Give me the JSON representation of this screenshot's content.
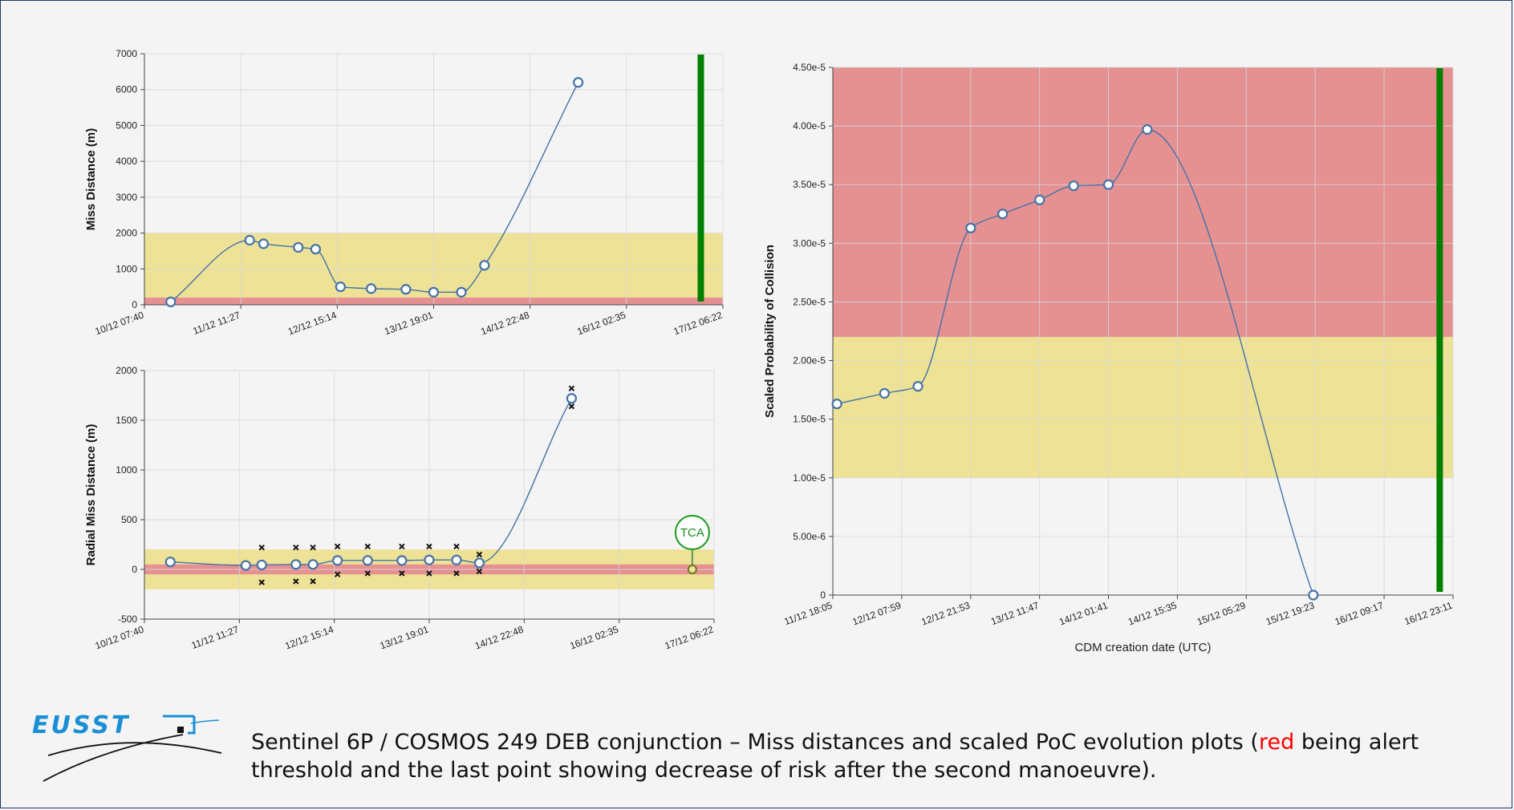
{
  "chart_data": [
    {
      "id": "miss",
      "type": "line",
      "ylabel": "Miss Distance (m)",
      "xlim": [
        "2020-12-10T07:40",
        "2020-12-17T06:22"
      ],
      "x_ticks": [
        "10/12 07:40",
        "11/12 11:27",
        "12/12 15:14",
        "13/12 19:01",
        "14/12 22:48",
        "16/12 02:35",
        "17/12 06:22"
      ],
      "ylim": [
        0,
        7000
      ],
      "y_ticks": [
        "0",
        "1000",
        "2000",
        "3000",
        "4000",
        "5000",
        "6000",
        "7000"
      ],
      "grid": true,
      "bands": [
        {
          "from": 0,
          "to": 2000,
          "color": "#ede296"
        },
        {
          "from": 0,
          "to": 200,
          "color": "#e59192"
        }
      ],
      "vline": {
        "x": "2020-12-17T00:00",
        "color": "#008000"
      },
      "series": [
        {
          "x": [
            "2020-12-10T15:15",
            "2020-12-11T14:00",
            "2020-12-11T18:00",
            "2020-12-12T04:00",
            "2020-12-12T09:00",
            "2020-12-12T16:10",
            "2020-12-13T01:00",
            "2020-12-13T11:00",
            "2020-12-13T19:00",
            "2020-12-14T03:00",
            "2020-12-14T09:40",
            "2020-12-15T12:40"
          ],
          "y": [
            80,
            1800,
            1700,
            1600,
            1550,
            500,
            450,
            430,
            350,
            350,
            1100,
            6200
          ]
        }
      ]
    },
    {
      "id": "radial",
      "type": "line",
      "ylabel": "Radial Miss Distance (m)",
      "xlim": [
        "2020-12-10T07:40",
        "2020-12-17T06:22"
      ],
      "x_ticks": [
        "10/12 07:40",
        "11/12 11:27",
        "12/12 15:14",
        "13/12 19:01",
        "14/12 22:48",
        "16/12 02:35",
        "17/12 06:22"
      ],
      "ylim": [
        -500,
        2000
      ],
      "y_ticks": [
        "-500",
        "0",
        "500",
        "1000",
        "1500",
        "2000"
      ],
      "grid": true,
      "bands": [
        {
          "from": -200,
          "to": 200,
          "color": "#ede296"
        },
        {
          "from": -50,
          "to": 50,
          "color": "#e59192"
        }
      ],
      "series": [
        {
          "x": [
            "2020-12-10T15:15",
            "2020-12-11T13:20",
            "2020-12-11T18:00",
            "2020-12-12T04:00",
            "2020-12-12T09:00",
            "2020-12-12T16:10",
            "2020-12-13T01:00",
            "2020-12-13T11:00",
            "2020-12-13T19:00",
            "2020-12-14T03:00",
            "2020-12-14T09:40",
            "2020-12-15T12:40"
          ],
          "y": [
            75,
            40,
            45,
            50,
            50,
            90,
            90,
            90,
            95,
            95,
            65,
            1720
          ]
        }
      ],
      "error_markers": [
        {
          "x": "2020-12-11T18:00",
          "y": [
            220,
            -130
          ]
        },
        {
          "x": "2020-12-12T04:00",
          "y": [
            220,
            -120
          ]
        },
        {
          "x": "2020-12-12T09:00",
          "y": [
            220,
            -120
          ]
        },
        {
          "x": "2020-12-12T16:10",
          "y": [
            230,
            -50
          ]
        },
        {
          "x": "2020-12-13T01:00",
          "y": [
            230,
            -40
          ]
        },
        {
          "x": "2020-12-13T11:00",
          "y": [
            230,
            -40
          ]
        },
        {
          "x": "2020-12-13T19:00",
          "y": [
            230,
            -40
          ]
        },
        {
          "x": "2020-12-14T03:00",
          "y": [
            230,
            -40
          ]
        },
        {
          "x": "2020-12-14T09:40",
          "y": [
            150,
            -20
          ]
        },
        {
          "x": "2020-12-15T12:40",
          "y": [
            1820,
            1640
          ]
        }
      ],
      "tca": {
        "label": "TCA",
        "x": "2020-12-17T00:00",
        "y": 0
      }
    },
    {
      "id": "poc",
      "type": "line",
      "ylabel": "Scaled Probability of Collision",
      "xlabel": "CDM creation date (UTC)",
      "xlim": [
        "2020-12-11T18:05",
        "2020-12-16T23:11"
      ],
      "x_ticks": [
        "11/12 18:05",
        "12/12 07:59",
        "12/12 21:53",
        "13/12 11:47",
        "14/12 01:41",
        "14/12 15:35",
        "15/12 05:29",
        "15/12 19:23",
        "16/12 09:17",
        "16/12 23:11"
      ],
      "ylim": [
        0,
        4.5e-05
      ],
      "y_ticks": [
        "0",
        "5.00e-6",
        "1.00e-5",
        "1.50e-5",
        "2.00e-5",
        "2.50e-5",
        "3.00e-5",
        "3.50e-5",
        "4.00e-5",
        "4.50e-5"
      ],
      "grid": true,
      "bands": [
        {
          "from": 2.2e-05,
          "to": 4.5e-05,
          "color": "#e59192"
        },
        {
          "from": 1e-05,
          "to": 2.2e-05,
          "color": "#ede296"
        }
      ],
      "vline": {
        "x": "2020-12-16T20:30",
        "color": "#008000"
      },
      "series": [
        {
          "x": [
            "2020-12-11T18:55",
            "2020-12-12T04:30",
            "2020-12-12T11:15",
            "2020-12-12T21:53",
            "2020-12-13T04:20",
            "2020-12-13T11:47",
            "2020-12-13T18:40",
            "2020-12-14T01:41",
            "2020-12-14T09:30",
            "2020-12-15T19:00"
          ],
          "y": [
            1.63e-05,
            1.72e-05,
            1.78e-05,
            3.13e-05,
            3.25e-05,
            3.37e-05,
            3.49e-05,
            3.5e-05,
            3.97e-05,
            0
          ]
        }
      ]
    }
  ],
  "caption": {
    "part1": "Sentinel 6P / COSMOS 249 DEB conjunction – Miss distances and scaled PoC evolution plots (",
    "red_word": "red",
    "part2": " being alert threshold and the last point showing decrease of risk after the second manoeuvre)."
  },
  "logo": {
    "text": "EUSST",
    "color": "#1a8fd6"
  }
}
